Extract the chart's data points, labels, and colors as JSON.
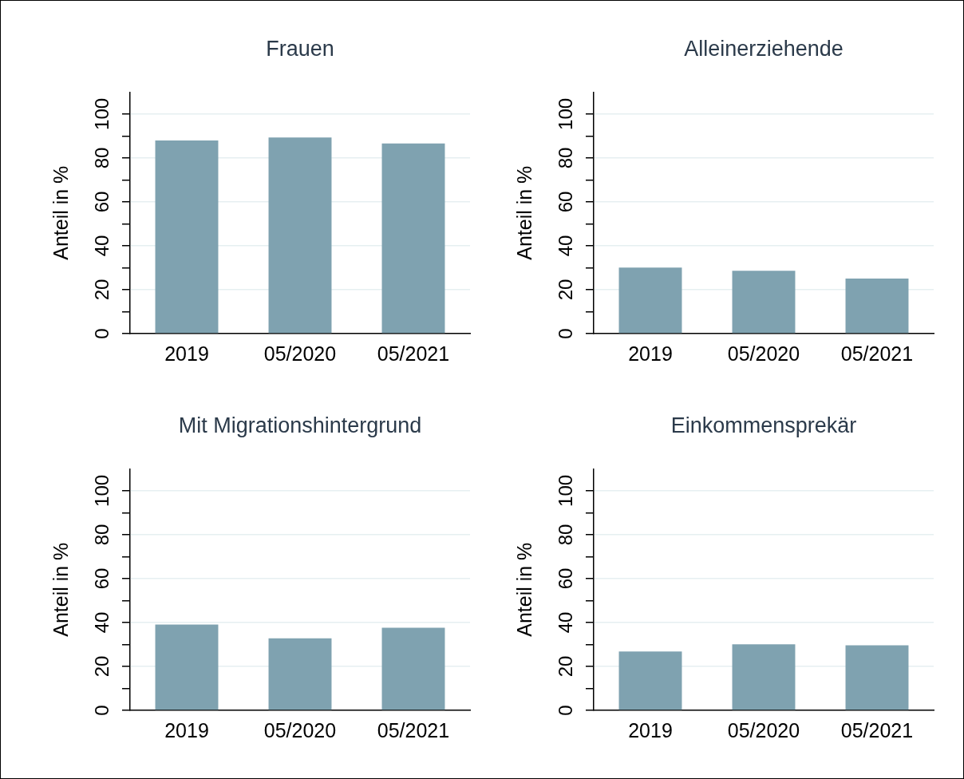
{
  "chart_data": [
    {
      "type": "bar",
      "title": "Frauen",
      "categories": [
        "2019",
        "05/2020",
        "05/2021"
      ],
      "values": [
        88.0,
        89.3,
        86.6
      ],
      "color": "#7fa2b0",
      "ylabel": "Anteil in %",
      "ylim": [
        0,
        110
      ],
      "yticks": [
        0,
        {
          "value": 10,
          "label": null
        },
        20,
        {
          "value": 30,
          "label": null
        },
        40,
        {
          "value": 50,
          "label": null
        },
        60,
        {
          "value": 70,
          "label": null
        },
        80,
        {
          "value": 90,
          "label": null
        },
        100
      ],
      "grid": "y"
    },
    {
      "type": "bar",
      "title": "Alleinerziehende",
      "categories": [
        "2019",
        "05/2020",
        "05/2021"
      ],
      "values": [
        30.1,
        28.6,
        25.1
      ],
      "color": "#7fa2b0",
      "ylabel": "Anteil in %",
      "ylim": [
        0,
        110
      ],
      "yticks": [
        0,
        {
          "value": 10,
          "label": null
        },
        20,
        {
          "value": 30,
          "label": null
        },
        40,
        {
          "value": 50,
          "label": null
        },
        60,
        {
          "value": 70,
          "label": null
        },
        80,
        {
          "value": 90,
          "label": null
        },
        100
      ],
      "grid": "y"
    },
    {
      "type": "bar",
      "title": "Mit Migrationshintergrund",
      "categories": [
        "2019",
        "05/2020",
        "05/2021"
      ],
      "values": [
        39.1,
        32.8,
        37.6
      ],
      "color": "#7fa2b0",
      "ylabel": "Anteil in %",
      "ylim": [
        0,
        110
      ],
      "yticks": [
        0,
        {
          "value": 10,
          "label": null
        },
        20,
        {
          "value": 30,
          "label": null
        },
        40,
        {
          "value": 50,
          "label": null
        },
        60,
        {
          "value": 70,
          "label": null
        },
        80,
        {
          "value": 90,
          "label": null
        },
        100
      ],
      "grid": "y"
    },
    {
      "type": "bar",
      "title": "Einkommensprekär",
      "categories": [
        "2019",
        "05/2020",
        "05/2021"
      ],
      "values": [
        26.8,
        30.1,
        29.6
      ],
      "color": "#7fa2b0",
      "ylabel": "Anteil in %",
      "ylim": [
        0,
        110
      ],
      "yticks": [
        0,
        {
          "value": 10,
          "label": null
        },
        20,
        {
          "value": 30,
          "label": null
        },
        40,
        {
          "value": 50,
          "label": null
        },
        60,
        {
          "value": 70,
          "label": null
        },
        80,
        {
          "value": 90,
          "label": null
        },
        100
      ],
      "grid": "y"
    }
  ]
}
